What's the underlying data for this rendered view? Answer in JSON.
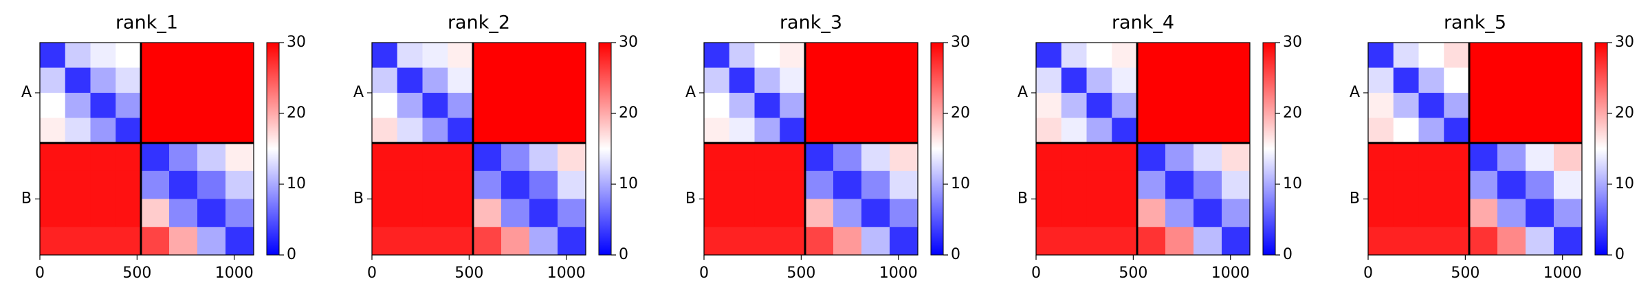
{
  "chart_data": [
    {
      "type": "heatmap",
      "title": "rank_1",
      "colormap": "bwr",
      "xlim": [
        0,
        1100
      ],
      "ylim": [
        1100,
        0
      ],
      "clim": [
        0,
        30
      ],
      "xticks": [
        0,
        500,
        1000
      ],
      "yticks": [
        {
          "value": 260,
          "label": "A"
        },
        {
          "value": 810,
          "label": "B"
        }
      ],
      "cticks": [
        0,
        10,
        20,
        30
      ],
      "chain_breaks": [
        520
      ],
      "bins": [
        0,
        130,
        260,
        390,
        520,
        665,
        810,
        955,
        1100
      ],
      "values": [
        [
          3,
          12,
          14,
          15,
          30,
          30,
          30,
          30
        ],
        [
          12,
          3,
          10,
          13,
          30,
          30,
          30,
          30
        ],
        [
          15,
          10,
          3,
          9,
          30,
          30,
          30,
          30
        ],
        [
          16,
          13,
          9,
          3,
          30,
          30,
          30,
          30
        ],
        [
          29,
          29,
          29,
          29,
          3,
          8,
          12,
          16
        ],
        [
          29,
          29,
          29,
          29,
          8,
          3,
          7,
          12
        ],
        [
          29,
          29,
          29,
          29,
          18,
          8,
          3,
          8
        ],
        [
          28,
          28,
          28,
          28,
          26,
          20,
          10,
          3
        ]
      ]
    },
    {
      "type": "heatmap",
      "title": "rank_2",
      "colormap": "bwr",
      "xlim": [
        0,
        1100
      ],
      "ylim": [
        1100,
        0
      ],
      "clim": [
        0,
        30
      ],
      "xticks": [
        0,
        500,
        1000
      ],
      "yticks": [
        {
          "value": 260,
          "label": "A"
        },
        {
          "value": 810,
          "label": "B"
        }
      ],
      "cticks": [
        0,
        10,
        20,
        30
      ],
      "chain_breaks": [
        520
      ],
      "bins": [
        0,
        130,
        260,
        390,
        520,
        665,
        810,
        955,
        1100
      ],
      "values": [
        [
          3,
          13,
          14,
          16,
          30,
          30,
          30,
          30
        ],
        [
          12,
          3,
          10,
          14,
          30,
          30,
          30,
          30
        ],
        [
          15,
          10,
          3,
          9,
          30,
          30,
          30,
          30
        ],
        [
          17,
          13,
          9,
          3,
          30,
          30,
          30,
          30
        ],
        [
          29,
          29,
          29,
          29,
          3,
          8,
          12,
          17
        ],
        [
          29,
          29,
          29,
          29,
          8,
          3,
          7,
          13
        ],
        [
          29,
          29,
          29,
          29,
          19,
          8,
          3,
          8
        ],
        [
          28,
          28,
          28,
          28,
          26,
          21,
          10,
          3
        ]
      ]
    },
    {
      "type": "heatmap",
      "title": "rank_3",
      "colormap": "bwr",
      "xlim": [
        0,
        1100
      ],
      "ylim": [
        1100,
        0
      ],
      "clim": [
        0,
        30
      ],
      "xticks": [
        0,
        500,
        1000
      ],
      "yticks": [
        {
          "value": 260,
          "label": "A"
        },
        {
          "value": 810,
          "label": "B"
        }
      ],
      "cticks": [
        0,
        10,
        20,
        30
      ],
      "chain_breaks": [
        520
      ],
      "bins": [
        0,
        130,
        260,
        390,
        520,
        665,
        810,
        955,
        1100
      ],
      "values": [
        [
          3,
          12,
          15,
          16,
          30,
          30,
          30,
          30
        ],
        [
          12,
          3,
          11,
          14,
          30,
          30,
          30,
          30
        ],
        [
          15,
          11,
          3,
          10,
          30,
          30,
          30,
          30
        ],
        [
          16,
          14,
          10,
          3,
          30,
          30,
          30,
          30
        ],
        [
          29,
          29,
          29,
          29,
          3,
          8,
          13,
          17
        ],
        [
          29,
          29,
          29,
          29,
          8,
          3,
          8,
          13
        ],
        [
          29,
          29,
          29,
          29,
          19,
          9,
          3,
          8
        ],
        [
          28,
          28,
          28,
          28,
          26,
          21,
          11,
          3
        ]
      ]
    },
    {
      "type": "heatmap",
      "title": "rank_4",
      "colormap": "bwr",
      "xlim": [
        0,
        1100
      ],
      "ylim": [
        1100,
        0
      ],
      "clim": [
        0,
        30
      ],
      "xticks": [
        0,
        500,
        1000
      ],
      "yticks": [
        {
          "value": 260,
          "label": "A"
        },
        {
          "value": 810,
          "label": "B"
        }
      ],
      "cticks": [
        0,
        10,
        20,
        30
      ],
      "chain_breaks": [
        520
      ],
      "bins": [
        0,
        130,
        260,
        390,
        520,
        665,
        810,
        955,
        1100
      ],
      "values": [
        [
          3,
          13,
          15,
          16,
          30,
          30,
          30,
          30
        ],
        [
          13,
          3,
          11,
          14,
          30,
          30,
          30,
          30
        ],
        [
          16,
          11,
          3,
          10,
          30,
          30,
          30,
          30
        ],
        [
          17,
          14,
          10,
          3,
          30,
          30,
          30,
          30
        ],
        [
          29,
          29,
          29,
          29,
          3,
          9,
          13,
          17
        ],
        [
          29,
          29,
          29,
          29,
          9,
          3,
          8,
          13
        ],
        [
          29,
          29,
          29,
          29,
          20,
          9,
          3,
          9
        ],
        [
          28,
          28,
          28,
          28,
          27,
          22,
          11,
          3
        ]
      ]
    },
    {
      "type": "heatmap",
      "title": "rank_5",
      "colormap": "bwr",
      "xlim": [
        0,
        1100
      ],
      "ylim": [
        1100,
        0
      ],
      "clim": [
        0,
        30
      ],
      "xticks": [
        0,
        500,
        1000
      ],
      "yticks": [
        {
          "value": 260,
          "label": "A"
        },
        {
          "value": 810,
          "label": "B"
        }
      ],
      "cticks": [
        0,
        10,
        20,
        30
      ],
      "chain_breaks": [
        520
      ],
      "bins": [
        0,
        130,
        260,
        390,
        520,
        665,
        810,
        955,
        1100
      ],
      "values": [
        [
          3,
          13,
          15,
          17,
          30,
          30,
          30,
          30
        ],
        [
          13,
          3,
          11,
          15,
          30,
          30,
          30,
          30
        ],
        [
          16,
          11,
          3,
          10,
          30,
          30,
          30,
          30
        ],
        [
          17,
          15,
          10,
          3,
          30,
          30,
          30,
          30
        ],
        [
          29,
          29,
          29,
          29,
          3,
          9,
          14,
          18
        ],
        [
          29,
          29,
          29,
          29,
          9,
          3,
          8,
          14
        ],
        [
          29,
          29,
          29,
          29,
          20,
          9,
          3,
          9
        ],
        [
          28,
          28,
          28,
          28,
          27,
          22,
          12,
          3
        ]
      ]
    }
  ]
}
